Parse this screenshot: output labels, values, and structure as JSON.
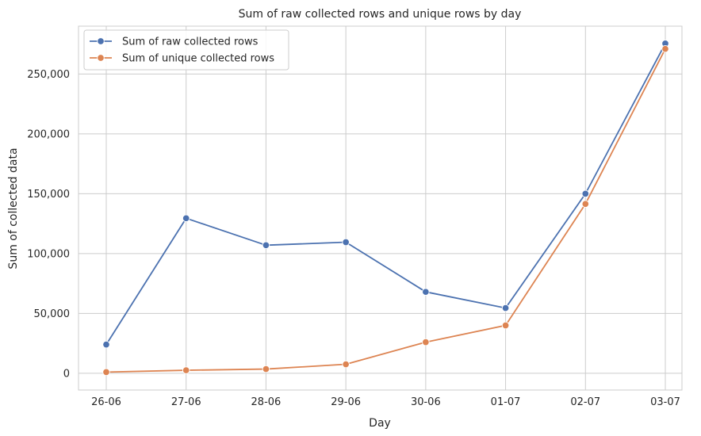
{
  "chart_data": {
    "type": "line",
    "title": "Sum of raw collected rows and unique rows by day",
    "xlabel": "Day",
    "ylabel": "Sum of collected data",
    "categories": [
      "26-06",
      "27-06",
      "28-06",
      "29-06",
      "30-06",
      "01-07",
      "02-07",
      "03-07"
    ],
    "ylim": [
      -14000,
      290000
    ],
    "yticks": [
      0,
      50000,
      100000,
      150000,
      200000,
      250000
    ],
    "ytick_labels": [
      "0",
      "50,000",
      "100,000",
      "150,000",
      "200,000",
      "250,000"
    ],
    "grid": true,
    "legend_position": "top-left",
    "series": [
      {
        "name": "Sum of raw collected rows",
        "color": "#4c72b0",
        "values": [
          24000,
          129500,
          107000,
          109500,
          68000,
          54500,
          150000,
          275500
        ]
      },
      {
        "name": "Sum of unique collected rows",
        "color": "#dd8452",
        "values": [
          1000,
          2500,
          3500,
          7500,
          26000,
          40000,
          141500,
          271000
        ]
      }
    ]
  }
}
